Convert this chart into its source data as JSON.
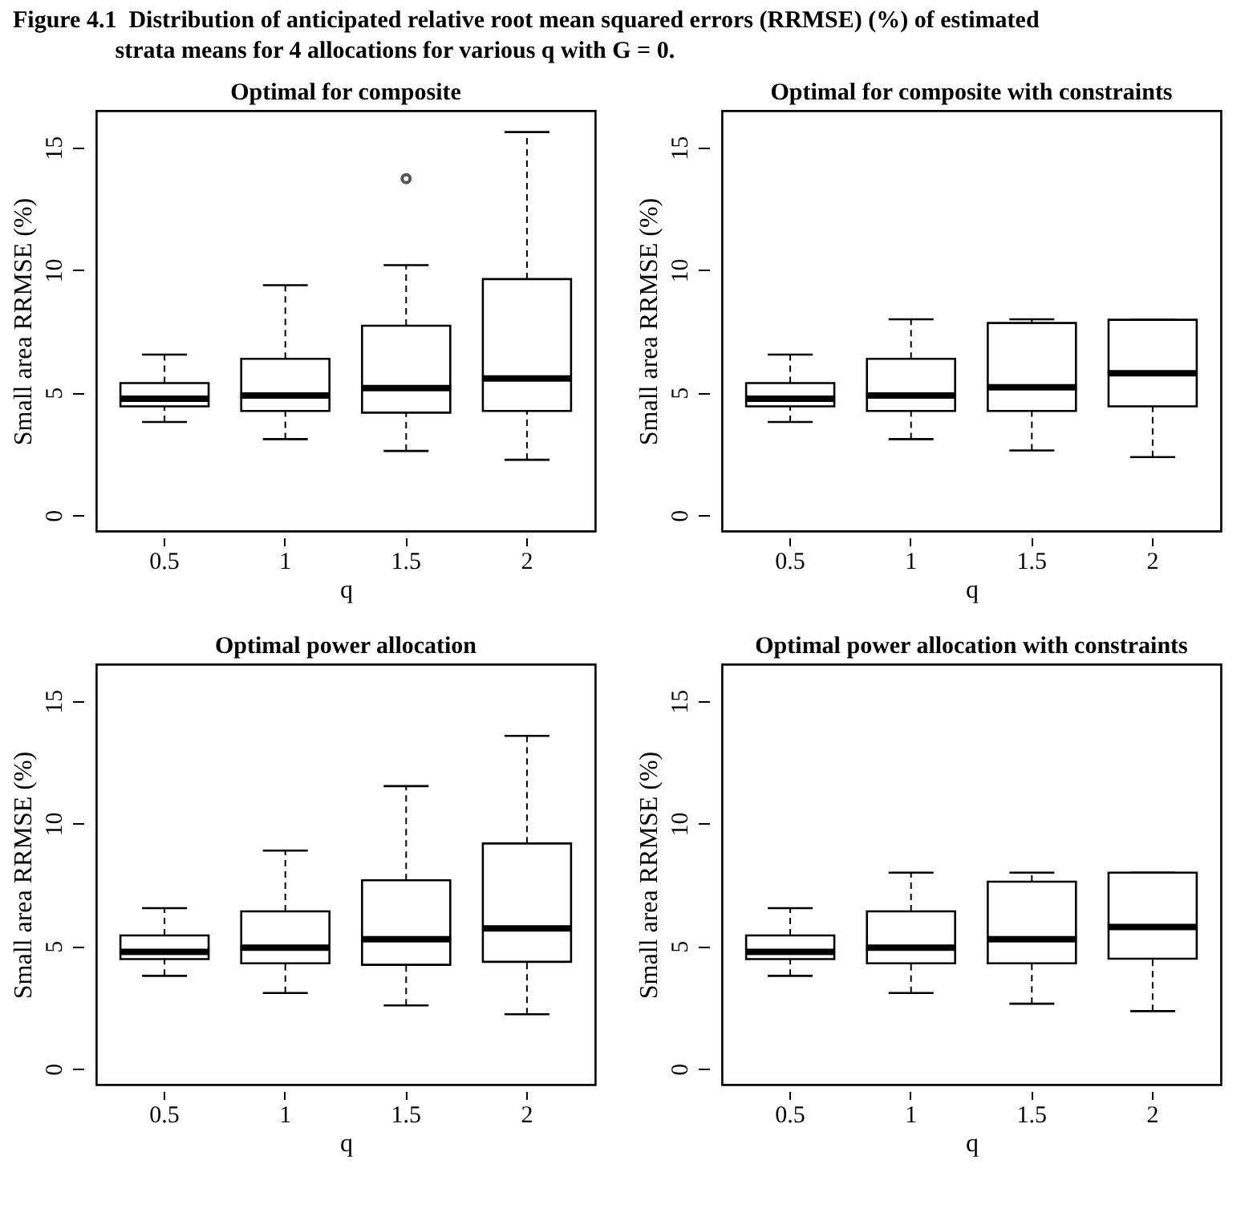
{
  "chart_data": [
    {
      "type": "box",
      "title": "Optimal for composite",
      "xlabel": "q",
      "ylabel": "Small area RRMSE (%)",
      "annotations": [
        "Figure 4.1  Distribution of anticipated relative root mean squared errors (RRMSE) (%) of estimated strata means for 4 allocations for various q with G = 0."
      ],
      "categories": [
        "0.5",
        "1",
        "1.5",
        "2"
      ],
      "ylim": [
        -0.65,
        16.5
      ],
      "yticks": [
        0,
        5,
        10,
        15
      ],
      "boxes": [
        {
          "low": 3.8,
          "q1": 4.44,
          "median": 4.75,
          "q3": 5.39,
          "high": 6.55
        },
        {
          "low": 3.1,
          "q1": 4.25,
          "median": 4.88,
          "q3": 6.38,
          "high": 9.38
        },
        {
          "low": 2.62,
          "q1": 4.18,
          "median": 5.18,
          "q3": 7.73,
          "high": 10.2,
          "outliers": [
            13.73
          ]
        },
        {
          "low": 2.26,
          "q1": 4.25,
          "median": 5.58,
          "q3": 9.63,
          "high": 15.63
        }
      ]
    },
    {
      "type": "box",
      "title": "Optimal for composite with constraints",
      "xlabel": "q",
      "ylabel": "Small area RRMSE (%)",
      "categories": [
        "0.5",
        "1",
        "1.5",
        "2"
      ],
      "ylim": [
        -0.65,
        16.5
      ],
      "yticks": [
        0,
        5,
        10,
        15
      ],
      "boxes": [
        {
          "low": 3.8,
          "q1": 4.44,
          "median": 4.75,
          "q3": 5.39,
          "high": 6.55
        },
        {
          "low": 3.1,
          "q1": 4.25,
          "median": 4.88,
          "q3": 6.38,
          "high": 7.99
        },
        {
          "low": 2.64,
          "q1": 4.25,
          "median": 5.22,
          "q3": 7.84,
          "high": 7.99
        },
        {
          "low": 2.37,
          "q1": 4.44,
          "median": 5.79,
          "q3": 7.97,
          "high": 7.97
        }
      ]
    },
    {
      "type": "box",
      "title": "Optimal power allocation",
      "xlabel": "q",
      "ylabel": "Small area RRMSE (%)",
      "categories": [
        "0.5",
        "1",
        "1.5",
        "2"
      ],
      "ylim": [
        -0.65,
        16.5
      ],
      "yticks": [
        0,
        5,
        10,
        15
      ],
      "boxes": [
        {
          "low": 3.79,
          "q1": 4.47,
          "median": 4.77,
          "q3": 5.44,
          "high": 6.55
        },
        {
          "low": 3.09,
          "q1": 4.3,
          "median": 4.94,
          "q3": 6.42,
          "high": 8.9
        },
        {
          "low": 2.58,
          "q1": 4.24,
          "median": 5.28,
          "q3": 7.69,
          "high": 11.53
        },
        {
          "low": 2.22,
          "q1": 4.36,
          "median": 5.72,
          "q3": 9.19,
          "high": 13.58
        }
      ]
    },
    {
      "type": "box",
      "title": "Optimal power allocation with constraints",
      "xlabel": "q",
      "ylabel": "Small area RRMSE (%)",
      "categories": [
        "0.5",
        "1",
        "1.5",
        "2"
      ],
      "ylim": [
        -0.65,
        16.5
      ],
      "yticks": [
        0,
        5,
        10,
        15
      ],
      "boxes": [
        {
          "low": 3.79,
          "q1": 4.47,
          "median": 4.77,
          "q3": 5.44,
          "high": 6.55
        },
        {
          "low": 3.09,
          "q1": 4.3,
          "median": 4.94,
          "q3": 6.42,
          "high": 8.0
        },
        {
          "low": 2.65,
          "q1": 4.3,
          "median": 5.28,
          "q3": 7.63,
          "high": 8.0
        },
        {
          "low": 2.35,
          "q1": 4.49,
          "median": 5.78,
          "q3": 8.0,
          "high": 8.0
        }
      ]
    }
  ]
}
